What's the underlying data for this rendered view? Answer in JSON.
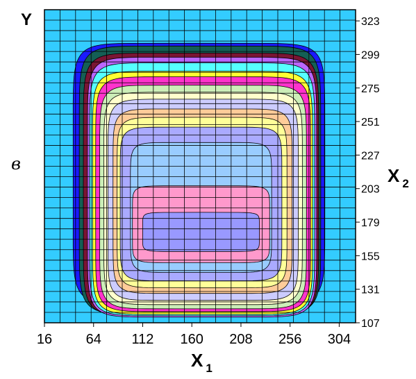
{
  "chart_data": {
    "type": "contour",
    "panel_label": "в",
    "y_letter": "Y",
    "x_axis": {
      "letter": "X",
      "subscript": "1",
      "ticks": [
        16,
        64,
        112,
        160,
        208,
        256,
        304
      ],
      "range": [
        16,
        320
      ]
    },
    "y_axis": {
      "letter": "X",
      "subscript": "2",
      "ticks": [
        107,
        131,
        155,
        179,
        203,
        227,
        251,
        275,
        299,
        323
      ],
      "range": [
        107,
        331
      ],
      "position": "right"
    },
    "grid": true,
    "background_color": "#33ccff",
    "levels": [
      {
        "color": "#1a1aff",
        "x": [
          44,
          290
        ],
        "y": [
          120,
          307
        ]
      },
      {
        "color": "#145f55",
        "x": [
          50,
          286
        ],
        "y": [
          113,
          305
        ]
      },
      {
        "color": "#7a1533",
        "x": [
          54,
          284
        ],
        "y": [
          112,
          300
        ]
      },
      {
        "color": "#bb66ff",
        "x": [
          58,
          282
        ],
        "y": [
          111,
          297
        ]
      },
      {
        "color": "#55ffff",
        "x": [
          60,
          280
        ],
        "y": [
          112,
          293
        ]
      },
      {
        "color": "#ffff33",
        "x": [
          63,
          278
        ],
        "y": [
          113,
          287
        ]
      },
      {
        "color": "#ff33cc",
        "x": [
          66,
          276
        ],
        "y": [
          115,
          283
        ]
      },
      {
        "color": "#cceeb8",
        "x": [
          70,
          272
        ],
        "y": [
          117,
          277
        ]
      },
      {
        "color": "#ffffcc",
        "x": [
          74,
          268
        ],
        "y": [
          120,
          272
        ]
      },
      {
        "color": "#ccccff",
        "x": [
          78,
          264
        ],
        "y": [
          123,
          267
        ]
      },
      {
        "color": "#ffcc99",
        "x": [
          83,
          258
        ],
        "y": [
          128,
          260
        ]
      },
      {
        "color": "#ffff99",
        "x": [
          87,
          253
        ],
        "y": [
          132,
          254
        ]
      },
      {
        "color": "#aaaaff",
        "x": [
          90,
          248
        ],
        "y": [
          137,
          247
        ]
      },
      {
        "color": "#99ccff",
        "x": [
          100,
          238
        ],
        "y": [
          143,
          236
        ]
      },
      {
        "color": "#ff99cc",
        "x": [
          102,
          236
        ],
        "y": [
          150,
          205
        ]
      },
      {
        "color": "#9999ff",
        "x": [
          112,
          226
        ],
        "y": [
          158,
          186
        ]
      }
    ]
  }
}
